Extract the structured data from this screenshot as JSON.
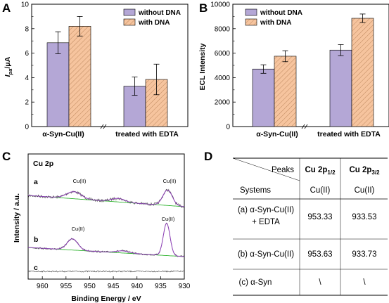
{
  "colors": {
    "without": "#b4a7d6",
    "with": "#f6c49e",
    "xps_raw": "#3a3a3a",
    "xps_fit": "#8e3fb8",
    "xps_base": "#32b432",
    "border": "#000000"
  },
  "chart_data": [
    {
      "panel": "A",
      "type": "bar",
      "categories": [
        "α-Syn-Cu(II)",
        "treated with EDTA"
      ],
      "ylabel_main": "I",
      "ylabel_sub": "pa",
      "ylabel_unit": "/μA",
      "ylim": [
        0,
        10
      ],
      "yticks": [
        0,
        2,
        4,
        6,
        8,
        10
      ],
      "legend_position": "top-right",
      "series": [
        {
          "name": "without DNA",
          "values": [
            6.85,
            3.3
          ],
          "errors": [
            0.9,
            0.75
          ]
        },
        {
          "name": "with DNA",
          "values": [
            8.2,
            3.85
          ],
          "errors": [
            0.8,
            1.25
          ]
        }
      ]
    },
    {
      "panel": "B",
      "type": "bar",
      "categories": [
        "α-Syn-Cu(II)",
        "treated with EDTA"
      ],
      "ylabel": "ECL Intensity",
      "ylim": [
        0,
        10000
      ],
      "yticks": [
        0,
        2000,
        4000,
        6000,
        8000,
        10000
      ],
      "legend_position": "top-left",
      "series": [
        {
          "name": "without DNA",
          "values": [
            4700,
            6250
          ],
          "errors": [
            350,
            450
          ]
        },
        {
          "name": "with DNA",
          "values": [
            5750,
            8850
          ],
          "errors": [
            450,
            350
          ]
        }
      ]
    },
    {
      "panel": "C",
      "type": "line",
      "title": "Cu 2p",
      "xlabel": "Binding Energy / eV",
      "ylabel": "Intensity / a.u.",
      "xlim": [
        963,
        930
      ],
      "xticks": [
        960,
        955,
        950,
        945,
        940,
        935,
        930
      ],
      "traces": [
        {
          "label": "a",
          "peaks": [
            {
              "name": "Cu(II)",
              "x": 953.33
            },
            {
              "name": "Cu(II)",
              "x": 933.53
            }
          ]
        },
        {
          "label": "b",
          "peaks": [
            {
              "name": "Cu(II)",
              "x": 953.63
            },
            {
              "name": "Cu(II)",
              "x": 933.73
            }
          ]
        },
        {
          "label": "c",
          "peaks": []
        }
      ]
    }
  ],
  "panels": {
    "A": "A",
    "B": "B",
    "C": "C",
    "D": "D"
  },
  "table": {
    "diag_top": "Peaks",
    "diag_bottom": "Systems",
    "col1_main": "Cu 2p",
    "col1_sub": "1/2",
    "col2_main": "Cu 2p",
    "col2_sub": "3/2",
    "state_row": [
      "Cu(II)",
      "Cu(II)"
    ],
    "rows": [
      {
        "name_line1": "(a) α-Syn-Cu(II)",
        "name_line2": "+ EDTA",
        "v1": "953.33",
        "v2": "933.53"
      },
      {
        "name_line1": "(b) α-Syn-Cu(II)",
        "name_line2": "",
        "v1": "953.63",
        "v2": "933.73"
      },
      {
        "name_line1": "(c) α-Syn",
        "name_line2": "",
        "v1": "\\",
        "v2": "\\"
      }
    ]
  }
}
